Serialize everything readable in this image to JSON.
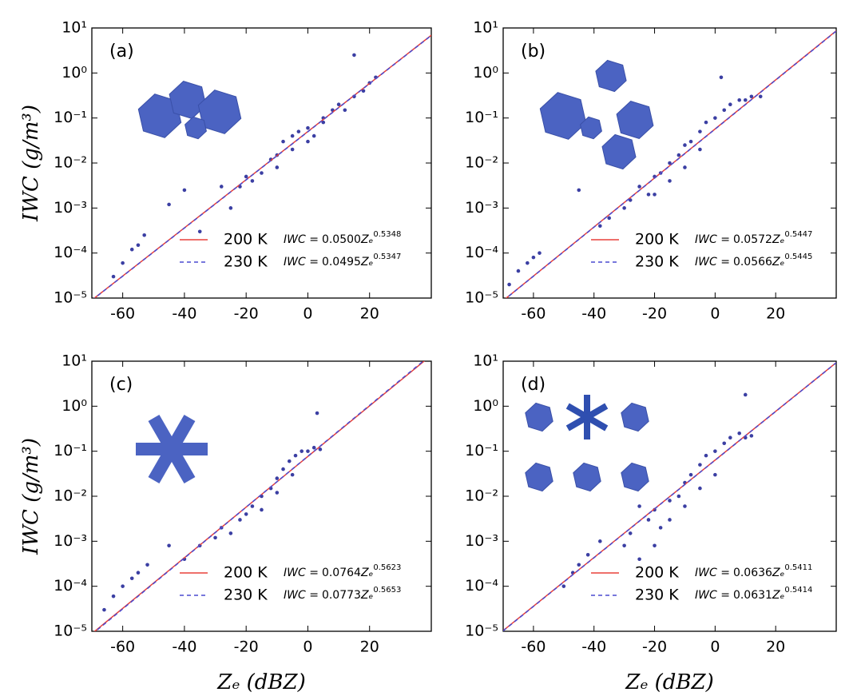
{
  "chart_data": [
    {
      "type": "scatter",
      "panel_label": "(a)",
      "ylabel": "IWC (g/m³)",
      "xlim": [
        -70,
        40
      ],
      "xticks": [
        -60,
        -40,
        -20,
        0,
        20
      ],
      "ylim": [
        1e-05,
        10
      ],
      "log_y": true,
      "yticks": [
        {
          "value": 1e-05,
          "label": "10⁻⁵"
        },
        {
          "value": 0.0001,
          "label": "10⁻⁴"
        },
        {
          "value": 0.001,
          "label": "10⁻³"
        },
        {
          "value": 0.01,
          "label": "10⁻²"
        },
        {
          "value": 0.1,
          "label": "10⁻¹"
        },
        {
          "value": 1,
          "label": "10⁰"
        },
        {
          "value": 10,
          "label": "10¹"
        }
      ],
      "points": {
        "color": "#3b3fa3",
        "x": [
          -63,
          -60,
          -57,
          -55,
          -53,
          -45,
          -40,
          -35,
          -28,
          -25,
          -22,
          -20,
          -18,
          -15,
          -12,
          -10,
          -8,
          -5,
          -3,
          0,
          2,
          5,
          8,
          10,
          12,
          15,
          18,
          20,
          22,
          -10,
          -5,
          0,
          5,
          15
        ],
        "y": [
          3e-05,
          6e-05,
          0.00012,
          0.00015,
          0.00025,
          0.0012,
          0.0025,
          0.0003,
          0.003,
          0.001,
          0.003,
          0.005,
          0.004,
          0.006,
          0.012,
          0.015,
          0.03,
          0.02,
          0.05,
          0.06,
          0.04,
          0.1,
          0.15,
          0.2,
          0.15,
          0.3,
          0.4,
          0.6,
          0.8,
          0.008,
          0.04,
          0.03,
          0.08,
          2.5
        ]
      },
      "formula_lhs": "IWC =",
      "formula_var": "Zₑ",
      "fits": [
        {
          "name": "200 K",
          "color": "#e8403a",
          "dashed": false,
          "coef": {
            "value": 0.05,
            "label": "0.0500"
          },
          "exponent": 0.5348
        },
        {
          "name": "230 K",
          "color": "#4a4ad0",
          "dashed": true,
          "coef": 0.0495,
          "exponent": 0.5347
        }
      ]
    },
    {
      "type": "scatter",
      "panel_label": "(b)",
      "xlim": [
        -70,
        40
      ],
      "xticks": [
        -60,
        -40,
        -20,
        0,
        20
      ],
      "ylim": [
        1e-05,
        10
      ],
      "log_y": true,
      "yticks": [
        {
          "value": 1e-05,
          "label": "10⁻⁵"
        },
        {
          "value": 0.0001,
          "label": "10⁻⁴"
        },
        {
          "value": 0.001,
          "label": "10⁻³"
        },
        {
          "value": 0.01,
          "label": "10⁻²"
        },
        {
          "value": 0.1,
          "label": "10⁻¹"
        },
        {
          "value": 1,
          "label": "10⁰"
        },
        {
          "value": 10,
          "label": "10¹"
        }
      ],
      "points": {
        "color": "#3b3fa3",
        "x": [
          -68,
          -65,
          -62,
          -60,
          -58,
          -45,
          -38,
          -35,
          -30,
          -28,
          -25,
          -22,
          -20,
          -18,
          -15,
          -12,
          -10,
          -8,
          -5,
          -3,
          0,
          3,
          5,
          8,
          10,
          12,
          15,
          -20,
          -15,
          -10,
          -5,
          2
        ],
        "y": [
          2e-05,
          4e-05,
          6e-05,
          8e-05,
          0.0001,
          0.0025,
          0.0004,
          0.0006,
          0.001,
          0.0015,
          0.003,
          0.002,
          0.005,
          0.006,
          0.01,
          0.015,
          0.025,
          0.03,
          0.05,
          0.08,
          0.1,
          0.15,
          0.2,
          0.25,
          0.25,
          0.3,
          0.3,
          0.002,
          0.004,
          0.008,
          0.02,
          0.8
        ]
      },
      "formula_lhs": "IWC =",
      "formula_var": "Zₑ",
      "fits": [
        {
          "name": "200 K",
          "color": "#e8403a",
          "dashed": false,
          "coef": 0.0572,
          "exponent": 0.5447
        },
        {
          "name": "230 K",
          "color": "#4a4ad0",
          "dashed": true,
          "coef": 0.0566,
          "exponent": 0.5445
        }
      ]
    },
    {
      "type": "scatter",
      "panel_label": "(c)",
      "ylabel": "IWC (g/m³)",
      "xlabel": "Zₑ (dBZ)",
      "xlim": [
        -70,
        40
      ],
      "xticks": [
        -60,
        -40,
        -20,
        0,
        20
      ],
      "ylim": [
        1e-05,
        10
      ],
      "log_y": true,
      "yticks": [
        {
          "value": 1e-05,
          "label": "10⁻⁵"
        },
        {
          "value": 0.0001,
          "label": "10⁻⁴"
        },
        {
          "value": 0.001,
          "label": "10⁻³"
        },
        {
          "value": 0.01,
          "label": "10⁻²"
        },
        {
          "value": 0.1,
          "label": "10⁻¹"
        },
        {
          "value": 1,
          "label": "10⁰"
        },
        {
          "value": 10,
          "label": "10¹"
        }
      ],
      "points": {
        "color": "#3b3fa3",
        "x": [
          -66,
          -63,
          -60,
          -57,
          -55,
          -52,
          -45,
          -40,
          -35,
          -30,
          -28,
          -25,
          -22,
          -20,
          -18,
          -15,
          -12,
          -10,
          -8,
          -6,
          -4,
          -2,
          0,
          2,
          4,
          -15,
          -10,
          -5,
          3
        ],
        "y": [
          3e-05,
          6e-05,
          0.0001,
          0.00015,
          0.0002,
          0.0003,
          0.0008,
          0.0004,
          0.0008,
          0.0012,
          0.002,
          0.0015,
          0.003,
          0.004,
          0.006,
          0.01,
          0.015,
          0.025,
          0.04,
          0.06,
          0.08,
          0.1,
          0.1,
          0.12,
          0.11,
          0.005,
          0.012,
          0.03,
          0.7
        ]
      },
      "formula_lhs": "IWC =",
      "formula_var": "Zₑ",
      "fits": [
        {
          "name": "200 K",
          "color": "#e8403a",
          "dashed": false,
          "coef": 0.0764,
          "exponent": 0.5623
        },
        {
          "name": "230 K",
          "color": "#4a4ad0",
          "dashed": true,
          "coef": 0.0773,
          "exponent": 0.5653
        }
      ]
    },
    {
      "type": "scatter",
      "panel_label": "(d)",
      "xlabel": "Zₑ (dBZ)",
      "xlim": [
        -70,
        40
      ],
      "xticks": [
        -60,
        -40,
        -20,
        0,
        20
      ],
      "ylim": [
        1e-05,
        10
      ],
      "log_y": true,
      "yticks": [
        {
          "value": 1e-05,
          "label": "10⁻⁵"
        },
        {
          "value": 0.0001,
          "label": "10⁻⁴"
        },
        {
          "value": 0.001,
          "label": "10⁻³"
        },
        {
          "value": 0.01,
          "label": "10⁻²"
        },
        {
          "value": 0.1,
          "label": "10⁻¹"
        },
        {
          "value": 1,
          "label": "10⁰"
        },
        {
          "value": 10,
          "label": "10¹"
        }
      ],
      "points": {
        "color": "#3b3fa3",
        "x": [
          -50,
          -47,
          -45,
          -42,
          -38,
          -30,
          -28,
          -25,
          -22,
          -20,
          -18,
          -15,
          -12,
          -10,
          -8,
          -5,
          -3,
          0,
          3,
          5,
          8,
          10,
          12,
          -25,
          -20,
          -15,
          -10,
          -5,
          0,
          10
        ],
        "y": [
          0.0001,
          0.0002,
          0.0003,
          0.0005,
          0.001,
          0.0008,
          0.0015,
          0.0004,
          0.003,
          0.005,
          0.002,
          0.008,
          0.01,
          0.02,
          0.03,
          0.05,
          0.08,
          0.1,
          0.15,
          0.2,
          0.25,
          0.2,
          0.22,
          0.006,
          0.0008,
          0.003,
          0.006,
          0.015,
          0.03,
          1.8
        ]
      },
      "formula_lhs": "IWC =",
      "formula_var": "Zₑ",
      "fits": [
        {
          "name": "200 K",
          "color": "#e8403a",
          "dashed": false,
          "coef": 0.0636,
          "exponent": 0.5411
        },
        {
          "name": "230 K",
          "color": "#4a4ad0",
          "dashed": true,
          "coef": 0.0631,
          "exponent": 0.5414
        }
      ]
    }
  ]
}
